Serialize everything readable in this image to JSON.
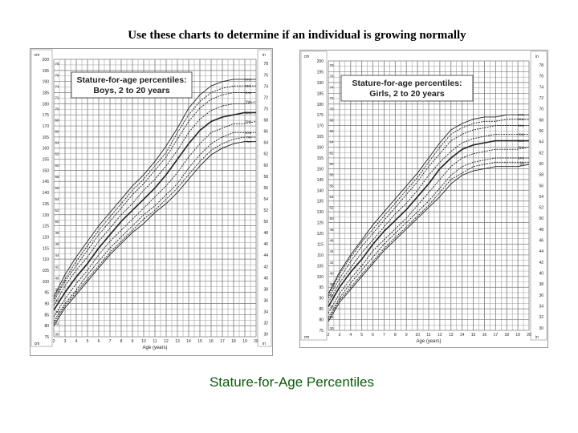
{
  "heading": "Use these charts to determine if an individual is growing normally",
  "caption": "Stature-for-Age Percentiles",
  "colors": {
    "caption": "#0a5b0a",
    "grid": "#7a7a7a",
    "curve": "#222222",
    "title_box": "#ffffff"
  },
  "chart_data": [
    {
      "type": "line",
      "title": "Stature-for-age percentiles:",
      "subtitle": "Boys, 2 to 20 years",
      "xlabel": "Age (years)",
      "unit_left_top": "cm",
      "unit_right_top": "in",
      "unit_left_bottom": "cm",
      "unit_right_bottom": "in",
      "xlim": [
        2,
        20
      ],
      "ylim_cm": [
        75,
        200
      ],
      "x_ticks": [
        "2",
        "3",
        "4",
        "5",
        "6",
        "7",
        "8",
        "9",
        "10",
        "11",
        "12",
        "13",
        "14",
        "15",
        "16",
        "17",
        "18",
        "19",
        "20"
      ],
      "cm_ticks": [
        "200",
        "195",
        "190",
        "185",
        "180",
        "175",
        "170",
        "165",
        "160",
        "155",
        "150",
        "145",
        "140",
        "135",
        "130",
        "125",
        "120",
        "115",
        "110",
        "105",
        "100",
        "95",
        "90",
        "85",
        "80",
        "75"
      ],
      "in_ticks": [
        "78",
        "76",
        "74",
        "72",
        "70",
        "68",
        "66",
        "64",
        "62",
        "60",
        "58",
        "56",
        "54",
        "52",
        "50",
        "48",
        "46",
        "44",
        "42",
        "40",
        "38",
        "36",
        "34",
        "32",
        "30"
      ],
      "grid": true,
      "x": [
        2,
        3,
        4,
        5,
        6,
        7,
        8,
        9,
        10,
        11,
        12,
        13,
        14,
        15,
        16,
        17,
        18,
        19,
        20
      ],
      "series": [
        {
          "name": "97th",
          "values": [
            93,
            103,
            111,
            118,
            125,
            131,
            137,
            143,
            148,
            154,
            161,
            169,
            178,
            184,
            188,
            190,
            191,
            191,
            191
          ]
        },
        {
          "name": "95th",
          "values": [
            92,
            101,
            109,
            116,
            123,
            129,
            135,
            141,
            146,
            152,
            158,
            167,
            175,
            181,
            185,
            187,
            188,
            188,
            188
          ]
        },
        {
          "name": "90th",
          "values": [
            91,
            100,
            107,
            114,
            121,
            127,
            133,
            139,
            144,
            150,
            156,
            164,
            172,
            178,
            182,
            184,
            185,
            185,
            185
          ]
        },
        {
          "name": "75th",
          "values": [
            89,
            98,
            105,
            111,
            118,
            124,
            130,
            135,
            141,
            146,
            152,
            159,
            167,
            173,
            177,
            179,
            180,
            180,
            181
          ]
        },
        {
          "name": "50th",
          "values": [
            87,
            95,
            102,
            108,
            115,
            121,
            127,
            132,
            137,
            142,
            148,
            155,
            162,
            168,
            172,
            174,
            175,
            176,
            176
          ]
        },
        {
          "name": "25th",
          "values": [
            84,
            92,
            99,
            105,
            112,
            118,
            123,
            128,
            133,
            138,
            143,
            149,
            156,
            162,
            167,
            169,
            171,
            171,
            172
          ]
        },
        {
          "name": "10th",
          "values": [
            82,
            90,
            96,
            103,
            109,
            115,
            120,
            125,
            130,
            134,
            139,
            144,
            151,
            157,
            162,
            165,
            167,
            167,
            167
          ]
        },
        {
          "name": "5th",
          "values": [
            81,
            89,
            95,
            101,
            107,
            113,
            118,
            123,
            128,
            132,
            137,
            142,
            148,
            154,
            159,
            162,
            164,
            165,
            165
          ]
        },
        {
          "name": "3rd",
          "values": [
            80,
            88,
            94,
            100,
            106,
            112,
            117,
            122,
            126,
            131,
            135,
            140,
            146,
            152,
            157,
            160,
            162,
            163,
            163
          ]
        }
      ]
    },
    {
      "type": "line",
      "title": "Stature-for-age percentiles:",
      "subtitle": "Girls, 2 to 20 years",
      "xlabel": "Age (years)",
      "unit_left_top": "cm",
      "unit_right_top": "in",
      "unit_left_bottom": "cm",
      "unit_right_bottom": "in",
      "xlim": [
        2,
        20
      ],
      "ylim_cm": [
        75,
        200
      ],
      "x_ticks": [
        "2",
        "3",
        "4",
        "5",
        "6",
        "7",
        "8",
        "9",
        "10",
        "11",
        "12",
        "13",
        "14",
        "15",
        "16",
        "17",
        "18",
        "19",
        "20"
      ],
      "cm_ticks": [
        "200",
        "195",
        "190",
        "185",
        "180",
        "175",
        "170",
        "165",
        "160",
        "155",
        "150",
        "145",
        "140",
        "135",
        "130",
        "125",
        "120",
        "115",
        "110",
        "105",
        "100",
        "95",
        "90",
        "85",
        "80",
        "75"
      ],
      "in_ticks": [
        "78",
        "76",
        "74",
        "72",
        "70",
        "68",
        "66",
        "64",
        "62",
        "60",
        "58",
        "56",
        "54",
        "52",
        "50",
        "48",
        "46",
        "44",
        "42",
        "40",
        "38",
        "36",
        "34",
        "32",
        "30"
      ],
      "grid": true,
      "x": [
        2,
        3,
        4,
        5,
        6,
        7,
        8,
        9,
        10,
        11,
        12,
        13,
        14,
        15,
        16,
        17,
        18,
        19,
        20
      ],
      "series": [
        {
          "name": "97th",
          "values": [
            92,
            102,
            110,
            117,
            124,
            130,
            136,
            142,
            148,
            155,
            162,
            168,
            171,
            173,
            174,
            174,
            175,
            175,
            175
          ]
        },
        {
          "name": "95th",
          "values": [
            91,
            101,
            109,
            116,
            122,
            128,
            134,
            140,
            146,
            153,
            160,
            166,
            169,
            171,
            172,
            172,
            173,
            173,
            173
          ]
        },
        {
          "name": "90th",
          "values": [
            90,
            99,
            107,
            114,
            120,
            126,
            132,
            138,
            144,
            151,
            157,
            163,
            166,
            168,
            169,
            170,
            170,
            170,
            170
          ]
        },
        {
          "name": "75th",
          "values": [
            88,
            97,
            104,
            111,
            117,
            123,
            129,
            134,
            140,
            147,
            153,
            158,
            162,
            164,
            165,
            166,
            166,
            166,
            166
          ]
        },
        {
          "name": "50th",
          "values": [
            86,
            95,
            102,
            108,
            115,
            121,
            126,
            131,
            137,
            143,
            150,
            155,
            159,
            161,
            162,
            163,
            163,
            163,
            163
          ]
        },
        {
          "name": "25th",
          "values": [
            83,
            92,
            99,
            105,
            112,
            117,
            122,
            127,
            133,
            139,
            145,
            151,
            155,
            157,
            158,
            159,
            159,
            159,
            160
          ]
        },
        {
          "name": "10th",
          "values": [
            81,
            90,
            97,
            103,
            109,
            115,
            120,
            125,
            130,
            135,
            141,
            147,
            151,
            153,
            154,
            155,
            155,
            155,
            155
          ]
        },
        {
          "name": "5th",
          "values": [
            80,
            89,
            95,
            101,
            107,
            113,
            118,
            123,
            128,
            133,
            139,
            145,
            148,
            151,
            152,
            153,
            153,
            153,
            153
          ]
        },
        {
          "name": "3rd",
          "values": [
            79,
            88,
            94,
            100,
            106,
            112,
            117,
            122,
            127,
            132,
            137,
            143,
            147,
            149,
            150,
            151,
            151,
            151,
            152
          ]
        }
      ]
    }
  ]
}
